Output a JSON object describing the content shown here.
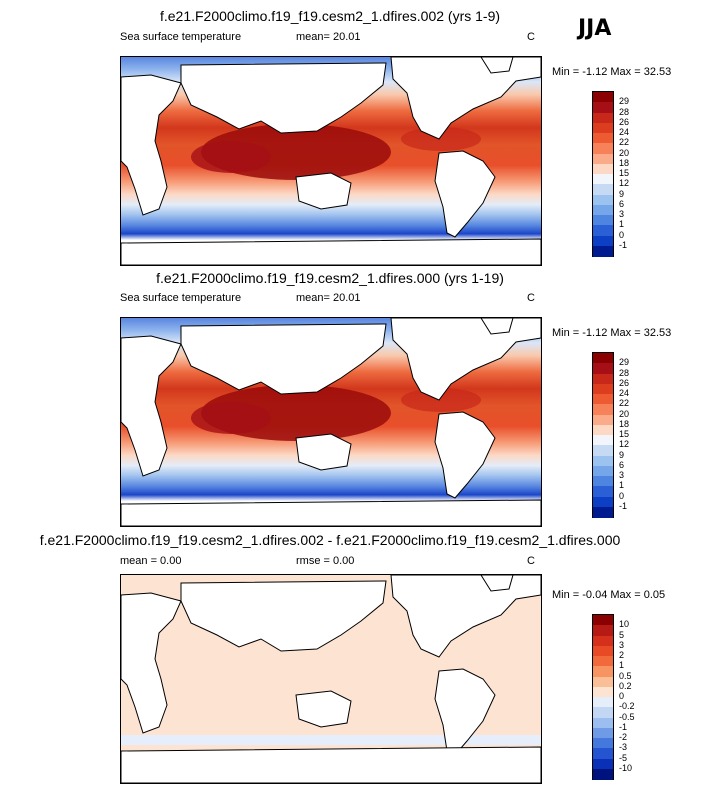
{
  "season": "JJA",
  "panels": [
    {
      "title": "f.e21.F2000climo.f19_f19.cesm2_1.dfires.002 (yrs 1-9)",
      "left_label": "Sea surface temperature",
      "mid_label": "mean=  20.01",
      "units": "C",
      "minmax": "Min = -1.12 Max =  32.53",
      "levels": [
        "29",
        "28",
        "26",
        "24",
        "22",
        "20",
        "18",
        "15",
        "12",
        "9",
        "6",
        "3",
        "1",
        "0",
        "-1"
      ],
      "colors": [
        "#8b0000",
        "#a50f15",
        "#c8281a",
        "#dc3d1f",
        "#ee5a32",
        "#f7825a",
        "#fbab8a",
        "#fdd8c4",
        "#f2f5fb",
        "#c6dbf3",
        "#9cc3ef",
        "#74a6e9",
        "#4d85e0",
        "#2a5fd6",
        "#0d3fc4",
        "#001b90"
      ]
    },
    {
      "title": "f.e21.F2000climo.f19_f19.cesm2_1.dfires.000 (yrs 1-19)",
      "left_label": "Sea surface temperature",
      "mid_label": "mean=  20.01",
      "units": "C",
      "minmax": "Min = -1.12 Max =  32.53",
      "levels": [
        "29",
        "28",
        "26",
        "24",
        "22",
        "20",
        "18",
        "15",
        "12",
        "9",
        "6",
        "3",
        "1",
        "0",
        "-1"
      ],
      "colors": [
        "#8b0000",
        "#a50f15",
        "#c8281a",
        "#dc3d1f",
        "#ee5a32",
        "#f7825a",
        "#fbab8a",
        "#fdd8c4",
        "#f2f5fb",
        "#c6dbf3",
        "#9cc3ef",
        "#74a6e9",
        "#4d85e0",
        "#2a5fd6",
        "#0d3fc4",
        "#001b90"
      ]
    },
    {
      "title": "f.e21.F2000climo.f19_f19.cesm2_1.dfires.002 - f.e21.F2000climo.f19_f19.cesm2_1.dfires.000",
      "left_label": "mean =   0.00",
      "mid_label": "rmse =   0.00",
      "units": "C",
      "minmax": "Min = -0.04 Max =  0.05",
      "levels": [
        "10",
        "5",
        "3",
        "2",
        "1",
        "0.5",
        "0.2",
        "0",
        "-0.2",
        "-0.5",
        "-1",
        "-2",
        "-3",
        "-5",
        "-10"
      ],
      "colors": [
        "#8b0000",
        "#b51a14",
        "#d4301c",
        "#e84a25",
        "#f26a3c",
        "#f79462",
        "#fbbf98",
        "#fde3d2",
        "#e6eefb",
        "#c3d7f4",
        "#9bbdef",
        "#6f9be6",
        "#4578dc",
        "#2454cf",
        "#0a30b8",
        "#00127e"
      ]
    }
  ],
  "chart_data": [
    {
      "type": "heatmap",
      "title": "f.e21.F2000climo.f19_f19.cesm2_1.dfires.002 (yrs 1-9)",
      "variable": "Sea surface temperature",
      "units": "C",
      "mean": 20.01,
      "min": -1.12,
      "max": 32.53,
      "contour_levels": [
        -1,
        0,
        1,
        3,
        6,
        9,
        12,
        15,
        18,
        20,
        22,
        24,
        26,
        28,
        29
      ],
      "colormap": "blue-to-red"
    },
    {
      "type": "heatmap",
      "title": "f.e21.F2000climo.f19_f19.cesm2_1.dfires.000 (yrs 1-19)",
      "variable": "Sea surface temperature",
      "units": "C",
      "mean": 20.01,
      "min": -1.12,
      "max": 32.53,
      "contour_levels": [
        -1,
        0,
        1,
        3,
        6,
        9,
        12,
        15,
        18,
        20,
        22,
        24,
        26,
        28,
        29
      ],
      "colormap": "blue-to-red"
    },
    {
      "type": "heatmap",
      "title": "f.e21.F2000climo.f19_f19.cesm2_1.dfires.002 - f.e21.F2000climo.f19_f19.cesm2_1.dfires.000",
      "units": "C",
      "mean": 0.0,
      "rmse": 0.0,
      "min": -0.04,
      "max": 0.05,
      "contour_levels": [
        -10,
        -5,
        -3,
        -2,
        -1,
        -0.5,
        -0.2,
        0,
        0.2,
        0.5,
        1,
        2,
        3,
        5,
        10
      ],
      "colormap": "blue-to-red"
    }
  ]
}
